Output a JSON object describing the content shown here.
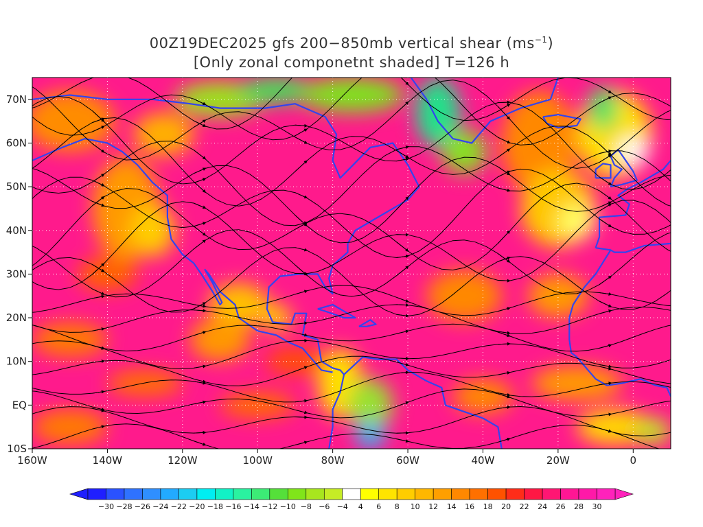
{
  "title": {
    "line1_prefix": "00Z19DEC2025 gfs 200−850mb vertical shear (ms",
    "line1_sup": "−1",
    "line1_suffix": ")",
    "line2": "[Only zonal componetnt shaded] T=126 h"
  },
  "map": {
    "lon_range": [
      -160,
      10
    ],
    "lat_range": [
      -10,
      75
    ],
    "x_ticks": [
      "160W",
      "140W",
      "120W",
      "100W",
      "80W",
      "60W",
      "40W",
      "20W",
      "0"
    ],
    "y_ticks": [
      "10S",
      "EQ",
      "10N",
      "20N",
      "30N",
      "40N",
      "50N",
      "60N",
      "70N"
    ],
    "grid": "dotted",
    "coastline_color": "#3344ee",
    "streamline_color": "#000000",
    "contour_color": "#9922aa"
  },
  "colorbar": {
    "labels": [
      "−30",
      "−28",
      "−26",
      "−24",
      "−22",
      "−20",
      "−18",
      "−16",
      "−14",
      "−12",
      "−10",
      "−8",
      "−6",
      "−4",
      "4",
      "6",
      "8",
      "10",
      "12",
      "14",
      "16",
      "18",
      "20",
      "22",
      "24",
      "26",
      "28",
      "30"
    ],
    "colors": [
      "#1f1fff",
      "#2a52ff",
      "#2f72ff",
      "#2f8fff",
      "#22aaff",
      "#1ccdf2",
      "#00eef2",
      "#11f2c6",
      "#2af2a0",
      "#3cec76",
      "#55e03a",
      "#80e51a",
      "#a8e61e",
      "#c6ec25",
      "#ffffff",
      "#ffff00",
      "#ffe400",
      "#ffcd00",
      "#ffb700",
      "#ff9f00",
      "#ff8800",
      "#ff7000",
      "#ff5200",
      "#ff2d19",
      "#ff1744",
      "#ff1673",
      "#ff1694",
      "#ff19a8",
      "#ff22bb"
    ]
  }
}
